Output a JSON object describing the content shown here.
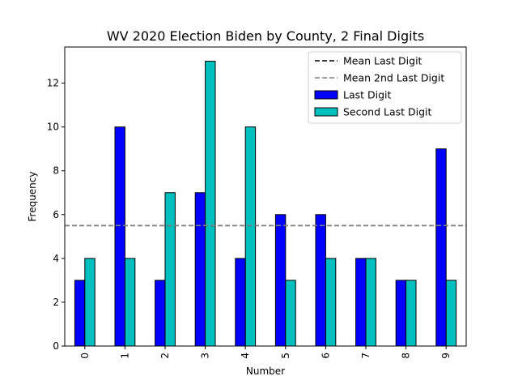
{
  "chart_data": {
    "type": "bar",
    "title": "WV 2020 Election Biden by County, 2 Final Digits",
    "xlabel": "Number",
    "ylabel": "Frequency",
    "categories": [
      "0",
      "1",
      "2",
      "3",
      "4",
      "5",
      "6",
      "7",
      "8",
      "9"
    ],
    "series": [
      {
        "name": "Last Digit",
        "color": "#0000ff",
        "values": [
          3,
          10,
          3,
          7,
          4,
          6,
          6,
          4,
          3,
          9
        ]
      },
      {
        "name": "Second Last Digit",
        "color": "#00bfbf",
        "values": [
          4,
          4,
          7,
          13,
          10,
          3,
          4,
          4,
          3,
          3
        ]
      }
    ],
    "reference_lines": [
      {
        "name": "Mean Last Digit",
        "value": 5.5,
        "color": "#000000",
        "style": "dashed"
      },
      {
        "name": "Mean 2nd Last Digit",
        "value": 5.5,
        "color": "#808080",
        "style": "dashed"
      }
    ],
    "ylim": [
      0,
      13.65
    ],
    "yticks": [
      0,
      2,
      4,
      6,
      8,
      10,
      12
    ],
    "grid": false,
    "legend_position": "top-right",
    "xtick_rotation": "vertical"
  }
}
